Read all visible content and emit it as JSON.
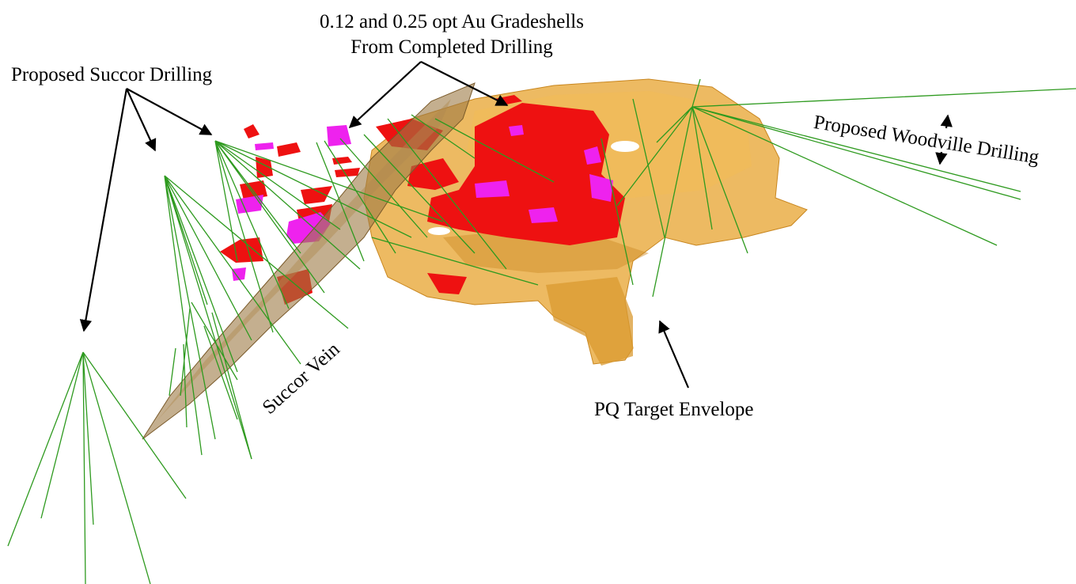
{
  "labels": {
    "gradeshells_line1": "0.12 and 0.25 opt Au Gradeshells",
    "gradeshells_line2": "From Completed Drilling",
    "succor_drilling": "Proposed Succor Drilling",
    "woodville_drilling": "Proposed Woodville Drilling",
    "succor_vein": "Succor Vein",
    "pq_target": "PQ Target Envelope"
  },
  "colors": {
    "background": "#ffffff",
    "target_envelope": "#e9ab3f",
    "succor_vein": "#9c7a45",
    "gradeshell_012": "#ee1111",
    "gradeshell_025": "#ee22ee",
    "drill_traces": "#2e9a1f",
    "annotation": "#000000"
  }
}
